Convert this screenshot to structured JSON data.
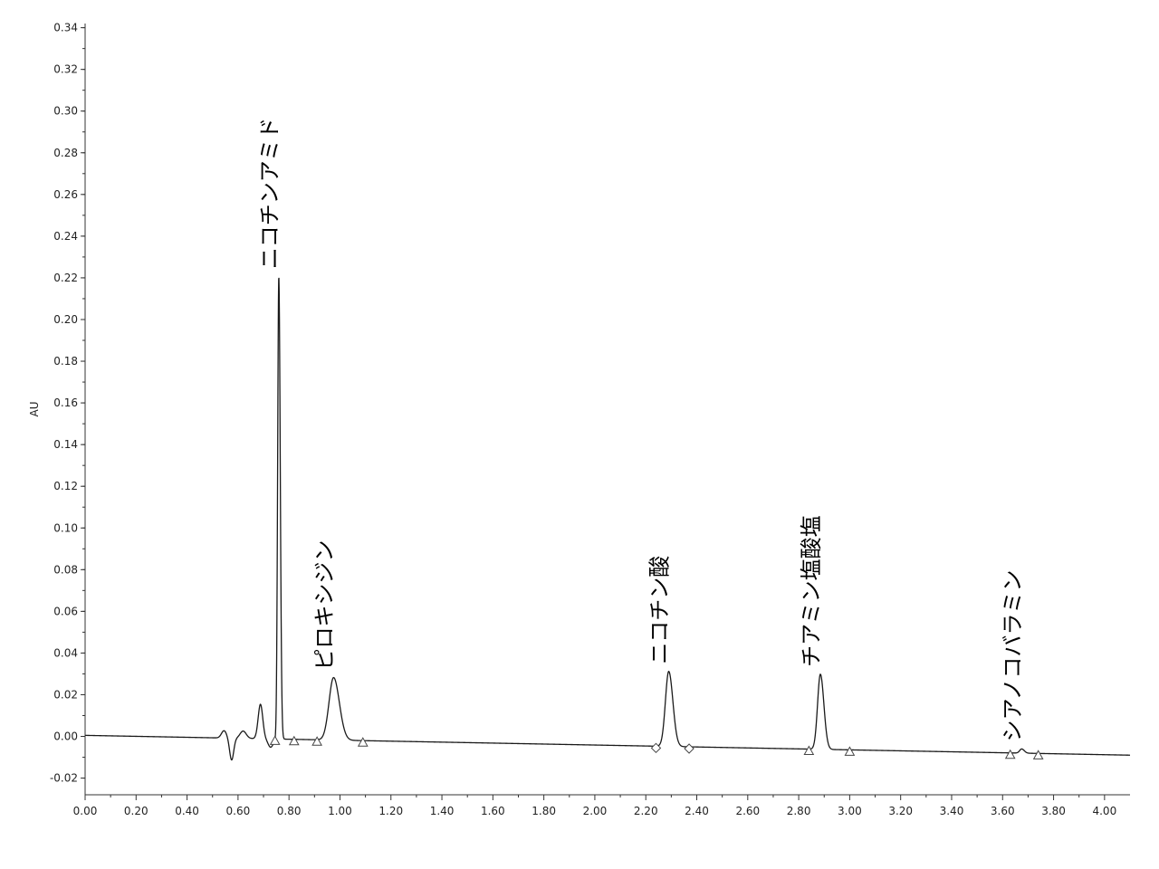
{
  "chart_data": {
    "type": "line",
    "title": "",
    "xlabel": "",
    "ylabel": "AU",
    "xlim": [
      0,
      4.1
    ],
    "ylim": [
      -0.028,
      0.342
    ],
    "grid": false,
    "legend": "none",
    "x_ticks": [
      "0.00",
      "0.20",
      "0.40",
      "0.60",
      "0.80",
      "1.00",
      "1.20",
      "1.40",
      "1.60",
      "1.80",
      "2.00",
      "2.20",
      "2.40",
      "2.60",
      "2.80",
      "3.00",
      "3.20",
      "3.40",
      "3.60",
      "3.80",
      "4.00"
    ],
    "y_ticks": [
      "-0.02",
      "0.00",
      "0.02",
      "0.04",
      "0.06",
      "0.08",
      "0.10",
      "0.12",
      "0.14",
      "0.16",
      "0.18",
      "0.20",
      "0.22",
      "0.24",
      "0.26",
      "0.28",
      "0.30",
      "0.32",
      "0.34"
    ],
    "trace_color": "#1a1a1a",
    "baseline": {
      "x": [
        0.0,
        4.1
      ],
      "y": [
        0.0005,
        -0.009
      ]
    },
    "peaks": [
      {
        "name": "ニコチンアミド",
        "rt": 0.76,
        "height": 0.222,
        "start": 0.745,
        "end": 0.82
      },
      {
        "name": "ピロキシジン",
        "rt": 0.975,
        "height": 0.03,
        "start": 0.91,
        "end": 1.09
      },
      {
        "name": "ニコチン酸",
        "rt": 2.29,
        "height": 0.036,
        "start": 2.24,
        "end": 2.37
      },
      {
        "name": "チアミン塩酸塩",
        "rt": 2.885,
        "height": 0.036,
        "start": 2.84,
        "end": 3.0
      },
      {
        "name": "シアノコバラミン",
        "rt": 3.675,
        "height": 0.002,
        "start": 3.63,
        "end": 3.74
      }
    ]
  }
}
